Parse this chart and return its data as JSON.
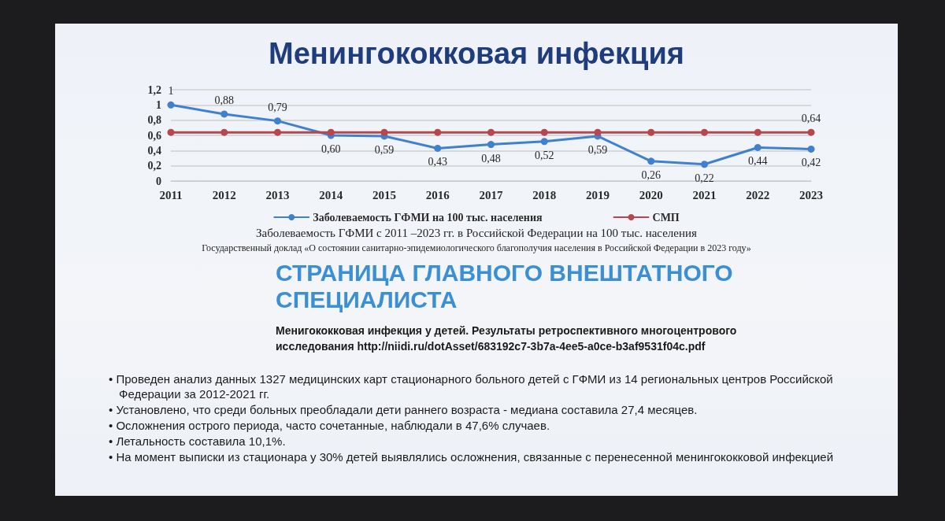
{
  "chart_data": {
    "type": "line",
    "title": "Менингококковая инфекция",
    "categories": [
      "2011",
      "2012",
      "2013",
      "2014",
      "2015",
      "2016",
      "2017",
      "2018",
      "2019",
      "2020",
      "2021",
      "2022",
      "2023"
    ],
    "series": [
      {
        "name": "Заболеваемость ГФМИ на 100 тыс. населения",
        "color": "#3f80cf",
        "values": [
          1,
          0.88,
          0.79,
          0.6,
          0.59,
          0.43,
          0.48,
          0.52,
          0.59,
          0.26,
          0.22,
          0.44,
          0.42
        ],
        "value_labels": [
          "1",
          "0,88",
          "0,79",
          "0,60",
          "0,59",
          "0,43",
          "0,48",
          "0,52",
          "0,59",
          "0,26",
          "0,22",
          "0,44",
          "0,42"
        ]
      },
      {
        "name": "СМП",
        "color": "#b5474e",
        "values": [
          0.64,
          0.64,
          0.64,
          0.64,
          0.64,
          0.64,
          0.64,
          0.64,
          0.64,
          0.64,
          0.64,
          0.64,
          0.64
        ],
        "value_labels": [
          null,
          null,
          null,
          null,
          null,
          null,
          null,
          null,
          null,
          null,
          null,
          null,
          "0,64"
        ]
      }
    ],
    "ylim": [
      0,
      1.2
    ],
    "yticks": [
      0,
      {
        "value": 0.2,
        "label": "0,2"
      },
      {
        "value": 0.4,
        "label": "0,4"
      },
      {
        "value": 0.6,
        "label": "0,6"
      },
      {
        "value": 0.8,
        "label": "0,8"
      },
      1,
      {
        "value": 1.2,
        "label": "1,2"
      }
    ],
    "grid": "y",
    "legend": "bottom",
    "marker": "circle",
    "line_style": "solid",
    "annotations": [
      "Заболеваемость ГФМИ с 2011 –2023 гг. в Российской Федерации на 100 тыс. населения",
      "Государственный доклад «О состоянии санитарно-эпидемиологического благополучия населения в Российской Федерации в 2023 году»",
      "СТРАНИЦА ГЛАВНОГО ВНЕШТАТНОГО СПЕЦИАЛИСТА",
      "Менигококковая инфекция у детей. Результаты ретроспективного многоцентрового исследования http://niidi.ru/dotAsset/683192c7-3b7a-4ee5-a0ce-b3af9531f04c.pdf",
      "• Проведен анализ данных 1327 медицинских карт стационарного больного детей с ГФМИ из 14 региональных центров Российской Федерации за 2012-2021 гг.",
      "• Установлено, что среди больных преобладали дети раннего возраста - медиана составила 27,4 месяцев.",
      "• Осложнения острого периода, часто сочетанные, наблюдали в 47,6% случаев.",
      "• Летальность составила 10,1%.",
      "• На момент выписки из стационара у 30% детей выявлялись осложнения, связанные с перенесенной менингококковой инфекцией"
    ]
  }
}
